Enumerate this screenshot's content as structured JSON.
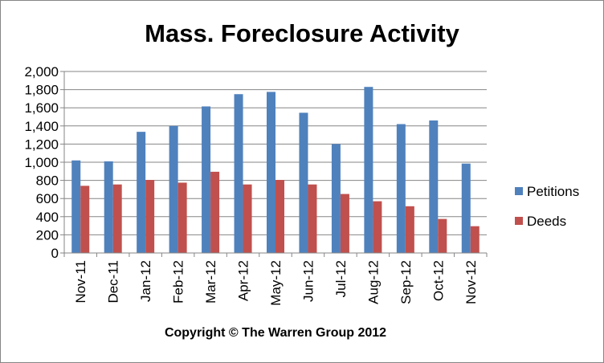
{
  "chart_data": {
    "type": "bar",
    "title": "Mass. Foreclosure Activity",
    "xlabel": "",
    "ylabel": "",
    "categories": [
      "Nov-11",
      "Dec-11",
      "Jan-12",
      "Feb-12",
      "Mar-12",
      "Apr-12",
      "May-12",
      "Jun-12",
      "Jul-12",
      "Aug-12",
      "Sep-12",
      "Oct-12",
      "Nov-12"
    ],
    "series": [
      {
        "name": "Petitions",
        "color": "#4F81BD",
        "values": [
          1020,
          1010,
          1335,
          1400,
          1615,
          1750,
          1775,
          1545,
          1200,
          1830,
          1420,
          1460,
          985
        ]
      },
      {
        "name": "Deeds",
        "color": "#C0504D",
        "values": [
          740,
          755,
          805,
          775,
          895,
          755,
          805,
          755,
          650,
          570,
          515,
          375,
          295
        ]
      }
    ],
    "ylim": [
      0,
      2000
    ],
    "yticks": [
      "0",
      "200",
      "400",
      "600",
      "800",
      "1,000",
      "1,200",
      "1,400",
      "1,600",
      "1,800",
      "2,000"
    ],
    "grid": true,
    "legend": "right",
    "footnote": "Copyright © The Warren Group 2012"
  }
}
